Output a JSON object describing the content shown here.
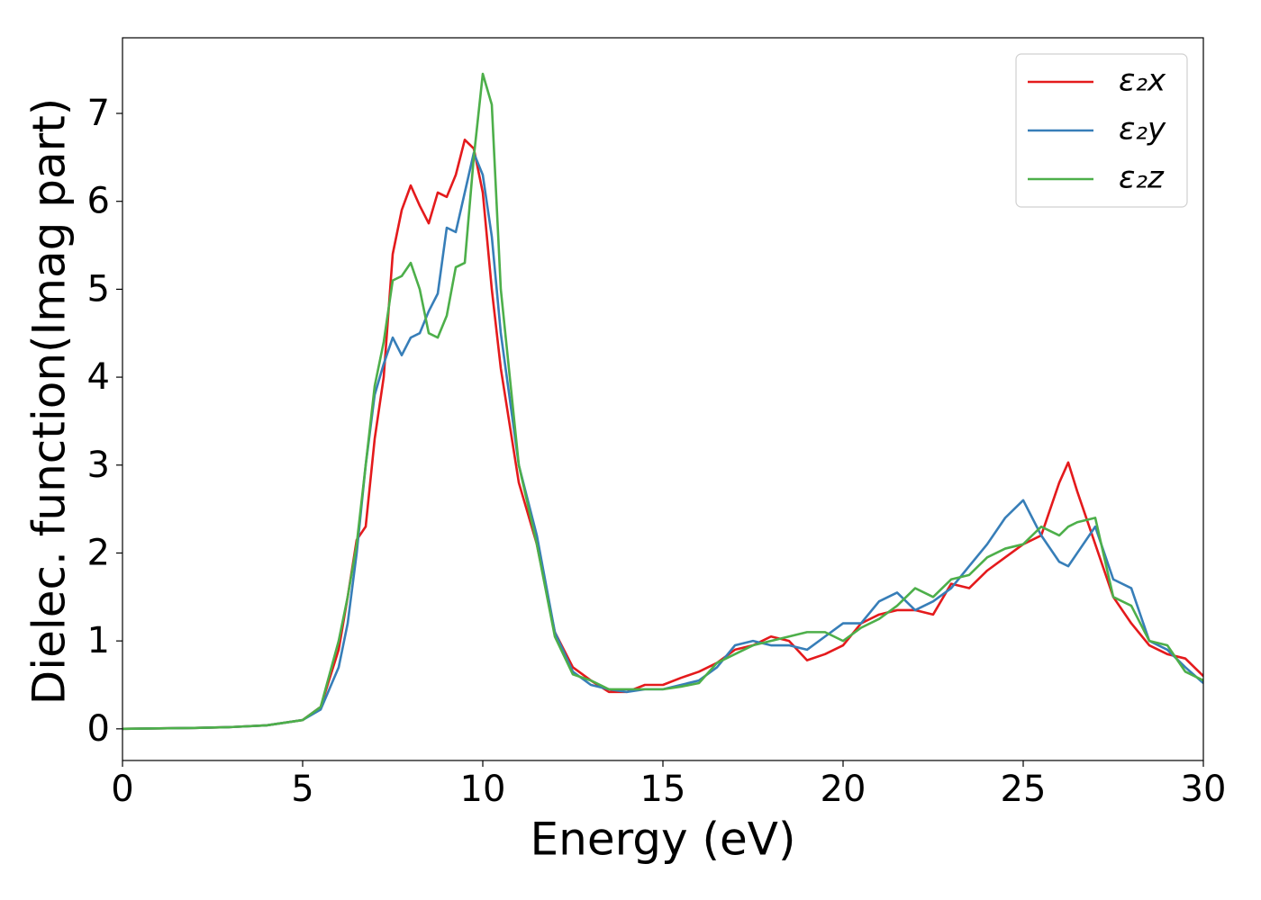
{
  "chart_data": {
    "type": "line",
    "xlabel": "Energy (eV)",
    "ylabel": "Dielec. function(Imag part)",
    "x": [
      0,
      1,
      2,
      3,
      4,
      5,
      5.5,
      6,
      6.25,
      6.5,
      6.75,
      7,
      7.25,
      7.5,
      7.75,
      8,
      8.25,
      8.5,
      8.75,
      9,
      9.25,
      9.5,
      9.75,
      10,
      10.25,
      10.5,
      11,
      11.5,
      12,
      12.5,
      13,
      13.5,
      14,
      14.5,
      15,
      15.5,
      16,
      16.5,
      17,
      17.5,
      18,
      18.5,
      19,
      19.5,
      20,
      20.5,
      21,
      21.5,
      22,
      22.5,
      23,
      23.5,
      24,
      24.5,
      25,
      25.5,
      26,
      26.25,
      26.5,
      27,
      27.5,
      28,
      28.5,
      29,
      29.5,
      30
    ],
    "series": [
      {
        "name": "ε₂x",
        "color": "#e41a1c",
        "values": [
          0,
          0.005,
          0.01,
          0.02,
          0.04,
          0.1,
          0.25,
          0.9,
          1.5,
          2.15,
          2.3,
          3.3,
          4.0,
          5.4,
          5.9,
          6.18,
          5.95,
          5.75,
          6.1,
          6.05,
          6.3,
          6.7,
          6.6,
          6.1,
          5.0,
          4.1,
          2.8,
          2.1,
          1.1,
          0.7,
          0.55,
          0.42,
          0.42,
          0.5,
          0.5,
          0.58,
          0.65,
          0.75,
          0.9,
          0.95,
          1.05,
          1.0,
          0.78,
          0.85,
          0.95,
          1.2,
          1.3,
          1.35,
          1.35,
          1.3,
          1.65,
          1.6,
          1.8,
          1.95,
          2.1,
          2.2,
          2.8,
          3.03,
          2.7,
          2.1,
          1.5,
          1.2,
          0.95,
          0.85,
          0.8,
          0.6
        ]
      },
      {
        "name": "ε₂y",
        "color": "#377eb8",
        "values": [
          0,
          0.005,
          0.01,
          0.02,
          0.04,
          0.1,
          0.22,
          0.7,
          1.2,
          2.0,
          3.0,
          3.8,
          4.15,
          4.45,
          4.25,
          4.45,
          4.5,
          4.75,
          4.95,
          5.7,
          5.65,
          6.1,
          6.55,
          6.3,
          5.6,
          4.5,
          3.0,
          2.2,
          1.1,
          0.65,
          0.5,
          0.45,
          0.42,
          0.45,
          0.45,
          0.5,
          0.55,
          0.7,
          0.95,
          1.0,
          0.95,
          0.95,
          0.9,
          1.05,
          1.2,
          1.2,
          1.45,
          1.55,
          1.35,
          1.45,
          1.6,
          1.85,
          2.1,
          2.4,
          2.6,
          2.2,
          1.9,
          1.85,
          2.0,
          2.3,
          1.7,
          1.6,
          1.0,
          0.9,
          0.7,
          0.52
        ]
      },
      {
        "name": "ε₂z",
        "color": "#4daf4a",
        "values": [
          0,
          0.005,
          0.01,
          0.02,
          0.04,
          0.1,
          0.25,
          1.0,
          1.5,
          2.1,
          3.0,
          3.9,
          4.4,
          5.1,
          5.15,
          5.3,
          5.0,
          4.5,
          4.45,
          4.7,
          5.25,
          5.3,
          6.5,
          7.45,
          7.1,
          5.0,
          3.0,
          2.1,
          1.05,
          0.62,
          0.55,
          0.45,
          0.45,
          0.45,
          0.45,
          0.48,
          0.52,
          0.75,
          0.85,
          0.95,
          1.0,
          1.05,
          1.1,
          1.1,
          1.0,
          1.15,
          1.25,
          1.4,
          1.6,
          1.5,
          1.7,
          1.75,
          1.95,
          2.05,
          2.1,
          2.3,
          2.2,
          2.3,
          2.35,
          2.4,
          1.5,
          1.4,
          1.0,
          0.95,
          0.65,
          0.55
        ]
      }
    ],
    "xlim": [
      0,
      30
    ],
    "xticks": [
      0,
      5,
      10,
      15,
      20,
      25,
      30
    ],
    "ylim": [
      -0.36,
      7.86
    ],
    "yticks": [
      0,
      1,
      2,
      3,
      4,
      5,
      6,
      7
    ],
    "grid": false,
    "legend": "upper right"
  }
}
